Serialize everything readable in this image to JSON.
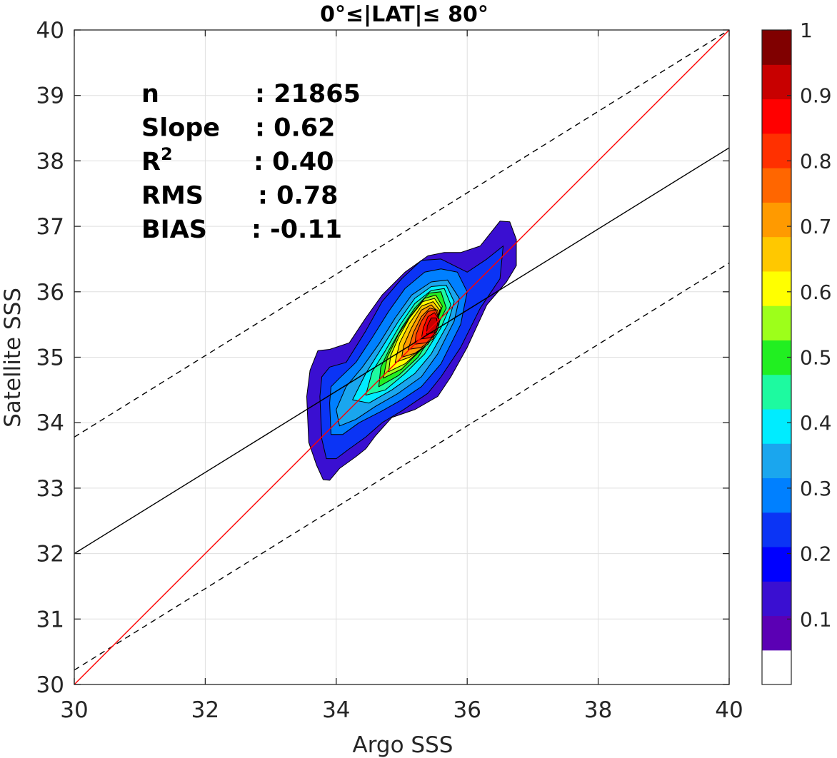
{
  "chart_data": {
    "type": "filled-contour",
    "title": "0°≤|LAT|≤ 80°",
    "xlabel": "Argo SSS",
    "ylabel": "Satellite SSS",
    "xlim": [
      30,
      40
    ],
    "ylim": [
      30,
      40
    ],
    "xticks": [
      "30",
      "32",
      "34",
      "36",
      "38",
      "40"
    ],
    "yticks": [
      "30",
      "31",
      "32",
      "33",
      "34",
      "35",
      "36",
      "37",
      "38",
      "39",
      "40"
    ],
    "grid": true,
    "stats": [
      {
        "label": "n",
        "value": ": 21865"
      },
      {
        "label": "Slope",
        "value": ": 0.62"
      },
      {
        "label": "R",
        "sup": "2",
        "value": ": 0.40"
      },
      {
        "label": "RMS",
        "value": ": 0.78"
      },
      {
        "label": "BIAS",
        "value": ": -0.11"
      }
    ],
    "lines": {
      "one_to_one": {
        "color": "#ff0000",
        "from": [
          30,
          30
        ],
        "to": [
          40,
          40
        ]
      },
      "regression": {
        "color": "#000000",
        "from": [
          30,
          32.0
        ],
        "to": [
          40,
          38.2
        ]
      },
      "upper_dashed": {
        "color": "#000000",
        "dash": true,
        "from": [
          30,
          33.78
        ],
        "to": [
          40,
          40.0
        ]
      },
      "lower_dashed": {
        "color": "#000000",
        "dash": true,
        "from": [
          30,
          30.22
        ],
        "to": [
          40,
          36.44
        ]
      }
    },
    "contour_levels": [
      {
        "level": 0.05,
        "color": "#3a0fd1",
        "path": [
          [
            33.55,
            34.4
          ],
          [
            33.58,
            33.7
          ],
          [
            33.7,
            33.35
          ],
          [
            33.8,
            33.13
          ],
          [
            33.9,
            33.12
          ],
          [
            34.05,
            33.3
          ],
          [
            34.3,
            33.48
          ],
          [
            34.45,
            33.6
          ],
          [
            34.6,
            33.8
          ],
          [
            34.85,
            34.08
          ],
          [
            35.2,
            34.2
          ],
          [
            35.55,
            34.4
          ],
          [
            35.75,
            34.7
          ],
          [
            36.0,
            35.15
          ],
          [
            36.3,
            35.8
          ],
          [
            36.6,
            36.15
          ],
          [
            36.75,
            36.4
          ],
          [
            36.75,
            36.8
          ],
          [
            36.65,
            37.07
          ],
          [
            36.5,
            37.08
          ],
          [
            36.2,
            36.7
          ],
          [
            35.9,
            36.6
          ],
          [
            35.65,
            36.6
          ],
          [
            35.4,
            36.55
          ],
          [
            35.05,
            36.3
          ],
          [
            34.7,
            35.95
          ],
          [
            34.45,
            35.6
          ],
          [
            34.2,
            35.22
          ],
          [
            33.9,
            35.12
          ],
          [
            33.72,
            35.1
          ],
          [
            33.6,
            34.8
          ]
        ]
      },
      {
        "level": 0.15,
        "color": "#0b34f5",
        "path": [
          [
            33.75,
            34.4
          ],
          [
            33.78,
            33.75
          ],
          [
            33.85,
            33.45
          ],
          [
            34.0,
            33.45
          ],
          [
            34.2,
            33.6
          ],
          [
            34.45,
            33.78
          ],
          [
            34.7,
            34.0
          ],
          [
            35.0,
            34.18
          ],
          [
            35.4,
            34.45
          ],
          [
            35.6,
            34.7
          ],
          [
            35.9,
            35.15
          ],
          [
            36.2,
            35.75
          ],
          [
            36.5,
            36.2
          ],
          [
            36.55,
            36.7
          ],
          [
            36.3,
            36.5
          ],
          [
            36.0,
            36.3
          ],
          [
            35.6,
            36.5
          ],
          [
            35.3,
            36.48
          ],
          [
            35.0,
            36.2
          ],
          [
            34.7,
            35.85
          ],
          [
            34.45,
            35.4
          ],
          [
            34.15,
            34.92
          ],
          [
            33.9,
            34.85
          ],
          [
            33.78,
            34.7
          ]
        ]
      },
      {
        "level": 0.25,
        "color": "#0080ff",
        "path": [
          [
            33.9,
            34.3
          ],
          [
            33.92,
            33.82
          ],
          [
            34.1,
            33.82
          ],
          [
            34.35,
            34.0
          ],
          [
            34.7,
            34.18
          ],
          [
            35.0,
            34.35
          ],
          [
            35.3,
            34.55
          ],
          [
            35.6,
            34.9
          ],
          [
            35.9,
            35.5
          ],
          [
            36.0,
            36.0
          ],
          [
            35.85,
            36.3
          ],
          [
            35.6,
            36.35
          ],
          [
            35.35,
            36.3
          ],
          [
            35.05,
            36.05
          ],
          [
            34.8,
            35.7
          ],
          [
            34.55,
            35.3
          ],
          [
            34.3,
            34.92
          ],
          [
            34.05,
            34.68
          ],
          [
            33.92,
            34.55
          ]
        ]
      },
      {
        "level": 0.3,
        "color": "#1aa6ee",
        "path": [
          [
            34.0,
            34.2
          ],
          [
            34.05,
            33.95
          ],
          [
            34.3,
            34.05
          ],
          [
            34.6,
            34.25
          ],
          [
            34.95,
            34.45
          ],
          [
            35.3,
            34.7
          ],
          [
            35.55,
            35.05
          ],
          [
            35.8,
            35.55
          ],
          [
            35.88,
            35.9
          ],
          [
            35.7,
            36.18
          ],
          [
            35.45,
            36.15
          ],
          [
            35.15,
            35.95
          ],
          [
            34.9,
            35.6
          ],
          [
            34.65,
            35.2
          ],
          [
            34.4,
            34.85
          ],
          [
            34.15,
            34.55
          ]
        ]
      },
      {
        "level": 0.35,
        "color": "#00ecff",
        "path": [
          [
            34.25,
            34.35
          ],
          [
            34.5,
            34.3
          ],
          [
            34.85,
            34.5
          ],
          [
            35.2,
            34.75
          ],
          [
            35.45,
            35.05
          ],
          [
            35.7,
            35.5
          ],
          [
            35.8,
            35.85
          ],
          [
            35.68,
            36.1
          ],
          [
            35.45,
            36.08
          ],
          [
            35.2,
            35.9
          ],
          [
            34.95,
            35.55
          ],
          [
            34.7,
            35.15
          ],
          [
            34.45,
            34.75
          ]
        ]
      },
      {
        "level": 0.4,
        "color": "#1dfaa0",
        "path": [
          [
            34.45,
            34.42
          ],
          [
            34.75,
            34.5
          ],
          [
            35.05,
            34.75
          ],
          [
            35.35,
            35.05
          ],
          [
            35.6,
            35.45
          ],
          [
            35.75,
            35.8
          ],
          [
            35.65,
            36.05
          ],
          [
            35.45,
            36.02
          ],
          [
            35.2,
            35.82
          ],
          [
            34.98,
            35.5
          ],
          [
            34.75,
            35.1
          ],
          [
            34.55,
            34.78
          ]
        ]
      },
      {
        "level": 0.5,
        "color": "#21ef21",
        "path": [
          [
            34.65,
            34.55
          ],
          [
            34.95,
            34.72
          ],
          [
            35.25,
            35.0
          ],
          [
            35.5,
            35.4
          ],
          [
            35.68,
            35.75
          ],
          [
            35.6,
            36.0
          ],
          [
            35.42,
            35.98
          ],
          [
            35.2,
            35.75
          ],
          [
            35.0,
            35.45
          ],
          [
            34.8,
            35.1
          ],
          [
            34.68,
            34.85
          ]
        ]
      },
      {
        "level": 0.55,
        "color": "#9dff1a",
        "path": [
          [
            34.72,
            34.68
          ],
          [
            35.0,
            34.82
          ],
          [
            35.28,
            35.1
          ],
          [
            35.5,
            35.45
          ],
          [
            35.62,
            35.78
          ],
          [
            35.52,
            35.95
          ],
          [
            35.35,
            35.9
          ],
          [
            35.15,
            35.65
          ],
          [
            34.95,
            35.35
          ],
          [
            34.78,
            35.0
          ]
        ]
      },
      {
        "level": 0.6,
        "color": "#ffff00",
        "path": [
          [
            34.8,
            34.78
          ],
          [
            35.05,
            34.9
          ],
          [
            35.3,
            35.12
          ],
          [
            35.5,
            35.45
          ],
          [
            35.6,
            35.75
          ],
          [
            35.5,
            35.9
          ],
          [
            35.32,
            35.85
          ],
          [
            35.12,
            35.6
          ],
          [
            34.95,
            35.3
          ],
          [
            34.83,
            35.02
          ]
        ]
      },
      {
        "level": 0.7,
        "color": "#ffc800",
        "path": [
          [
            34.9,
            34.92
          ],
          [
            35.12,
            35.0
          ],
          [
            35.35,
            35.15
          ],
          [
            35.52,
            35.45
          ],
          [
            35.58,
            35.72
          ],
          [
            35.48,
            35.85
          ],
          [
            35.3,
            35.78
          ],
          [
            35.12,
            35.52
          ],
          [
            34.97,
            35.22
          ]
        ]
      },
      {
        "level": 0.75,
        "color": "#ff9a00",
        "path": [
          [
            35.0,
            35.0
          ],
          [
            35.2,
            35.06
          ],
          [
            35.4,
            35.2
          ],
          [
            35.55,
            35.45
          ],
          [
            35.55,
            35.7
          ],
          [
            35.45,
            35.8
          ],
          [
            35.3,
            35.72
          ],
          [
            35.15,
            35.45
          ],
          [
            35.03,
            35.18
          ]
        ]
      },
      {
        "level": 0.8,
        "color": "#ff6600",
        "path": [
          [
            35.1,
            35.12
          ],
          [
            35.3,
            35.15
          ],
          [
            35.48,
            35.28
          ],
          [
            35.57,
            35.5
          ],
          [
            35.55,
            35.72
          ],
          [
            35.43,
            35.75
          ],
          [
            35.3,
            35.62
          ],
          [
            35.18,
            35.38
          ]
        ]
      },
      {
        "level": 0.85,
        "color": "#ff3000",
        "path": [
          [
            35.2,
            35.2
          ],
          [
            35.38,
            35.22
          ],
          [
            35.52,
            35.35
          ],
          [
            35.58,
            35.55
          ],
          [
            35.52,
            35.72
          ],
          [
            35.4,
            35.7
          ],
          [
            35.3,
            35.55
          ],
          [
            35.22,
            35.35
          ]
        ]
      },
      {
        "level": 0.9,
        "color": "#ff0000",
        "path": [
          [
            35.3,
            35.28
          ],
          [
            35.45,
            35.3
          ],
          [
            35.55,
            35.42
          ],
          [
            35.57,
            35.58
          ],
          [
            35.5,
            35.68
          ],
          [
            35.4,
            35.62
          ],
          [
            35.33,
            35.45
          ]
        ]
      },
      {
        "level": 0.95,
        "color": "#c80000",
        "path": [
          [
            35.38,
            35.35
          ],
          [
            35.5,
            35.38
          ],
          [
            35.55,
            35.5
          ],
          [
            35.53,
            35.6
          ],
          [
            35.45,
            35.6
          ],
          [
            35.39,
            35.48
          ]
        ]
      }
    ],
    "colorbar": {
      "ticks": [
        "0.1",
        "0.2",
        "0.3",
        "0.4",
        "0.5",
        "0.6",
        "0.7",
        "0.8",
        "0.9",
        "1"
      ],
      "range": [
        0,
        1
      ],
      "colors": [
        "#ffffff",
        "#5b00b4",
        "#3a0fd1",
        "#0000ff",
        "#0b34f5",
        "#0080ff",
        "#1aa6ee",
        "#00ecff",
        "#1dfaa0",
        "#21ef21",
        "#9dff1a",
        "#ffff00",
        "#ffc800",
        "#ff9a00",
        "#ff6600",
        "#ff3000",
        "#ff0000",
        "#c80000",
        "#800000"
      ]
    }
  }
}
